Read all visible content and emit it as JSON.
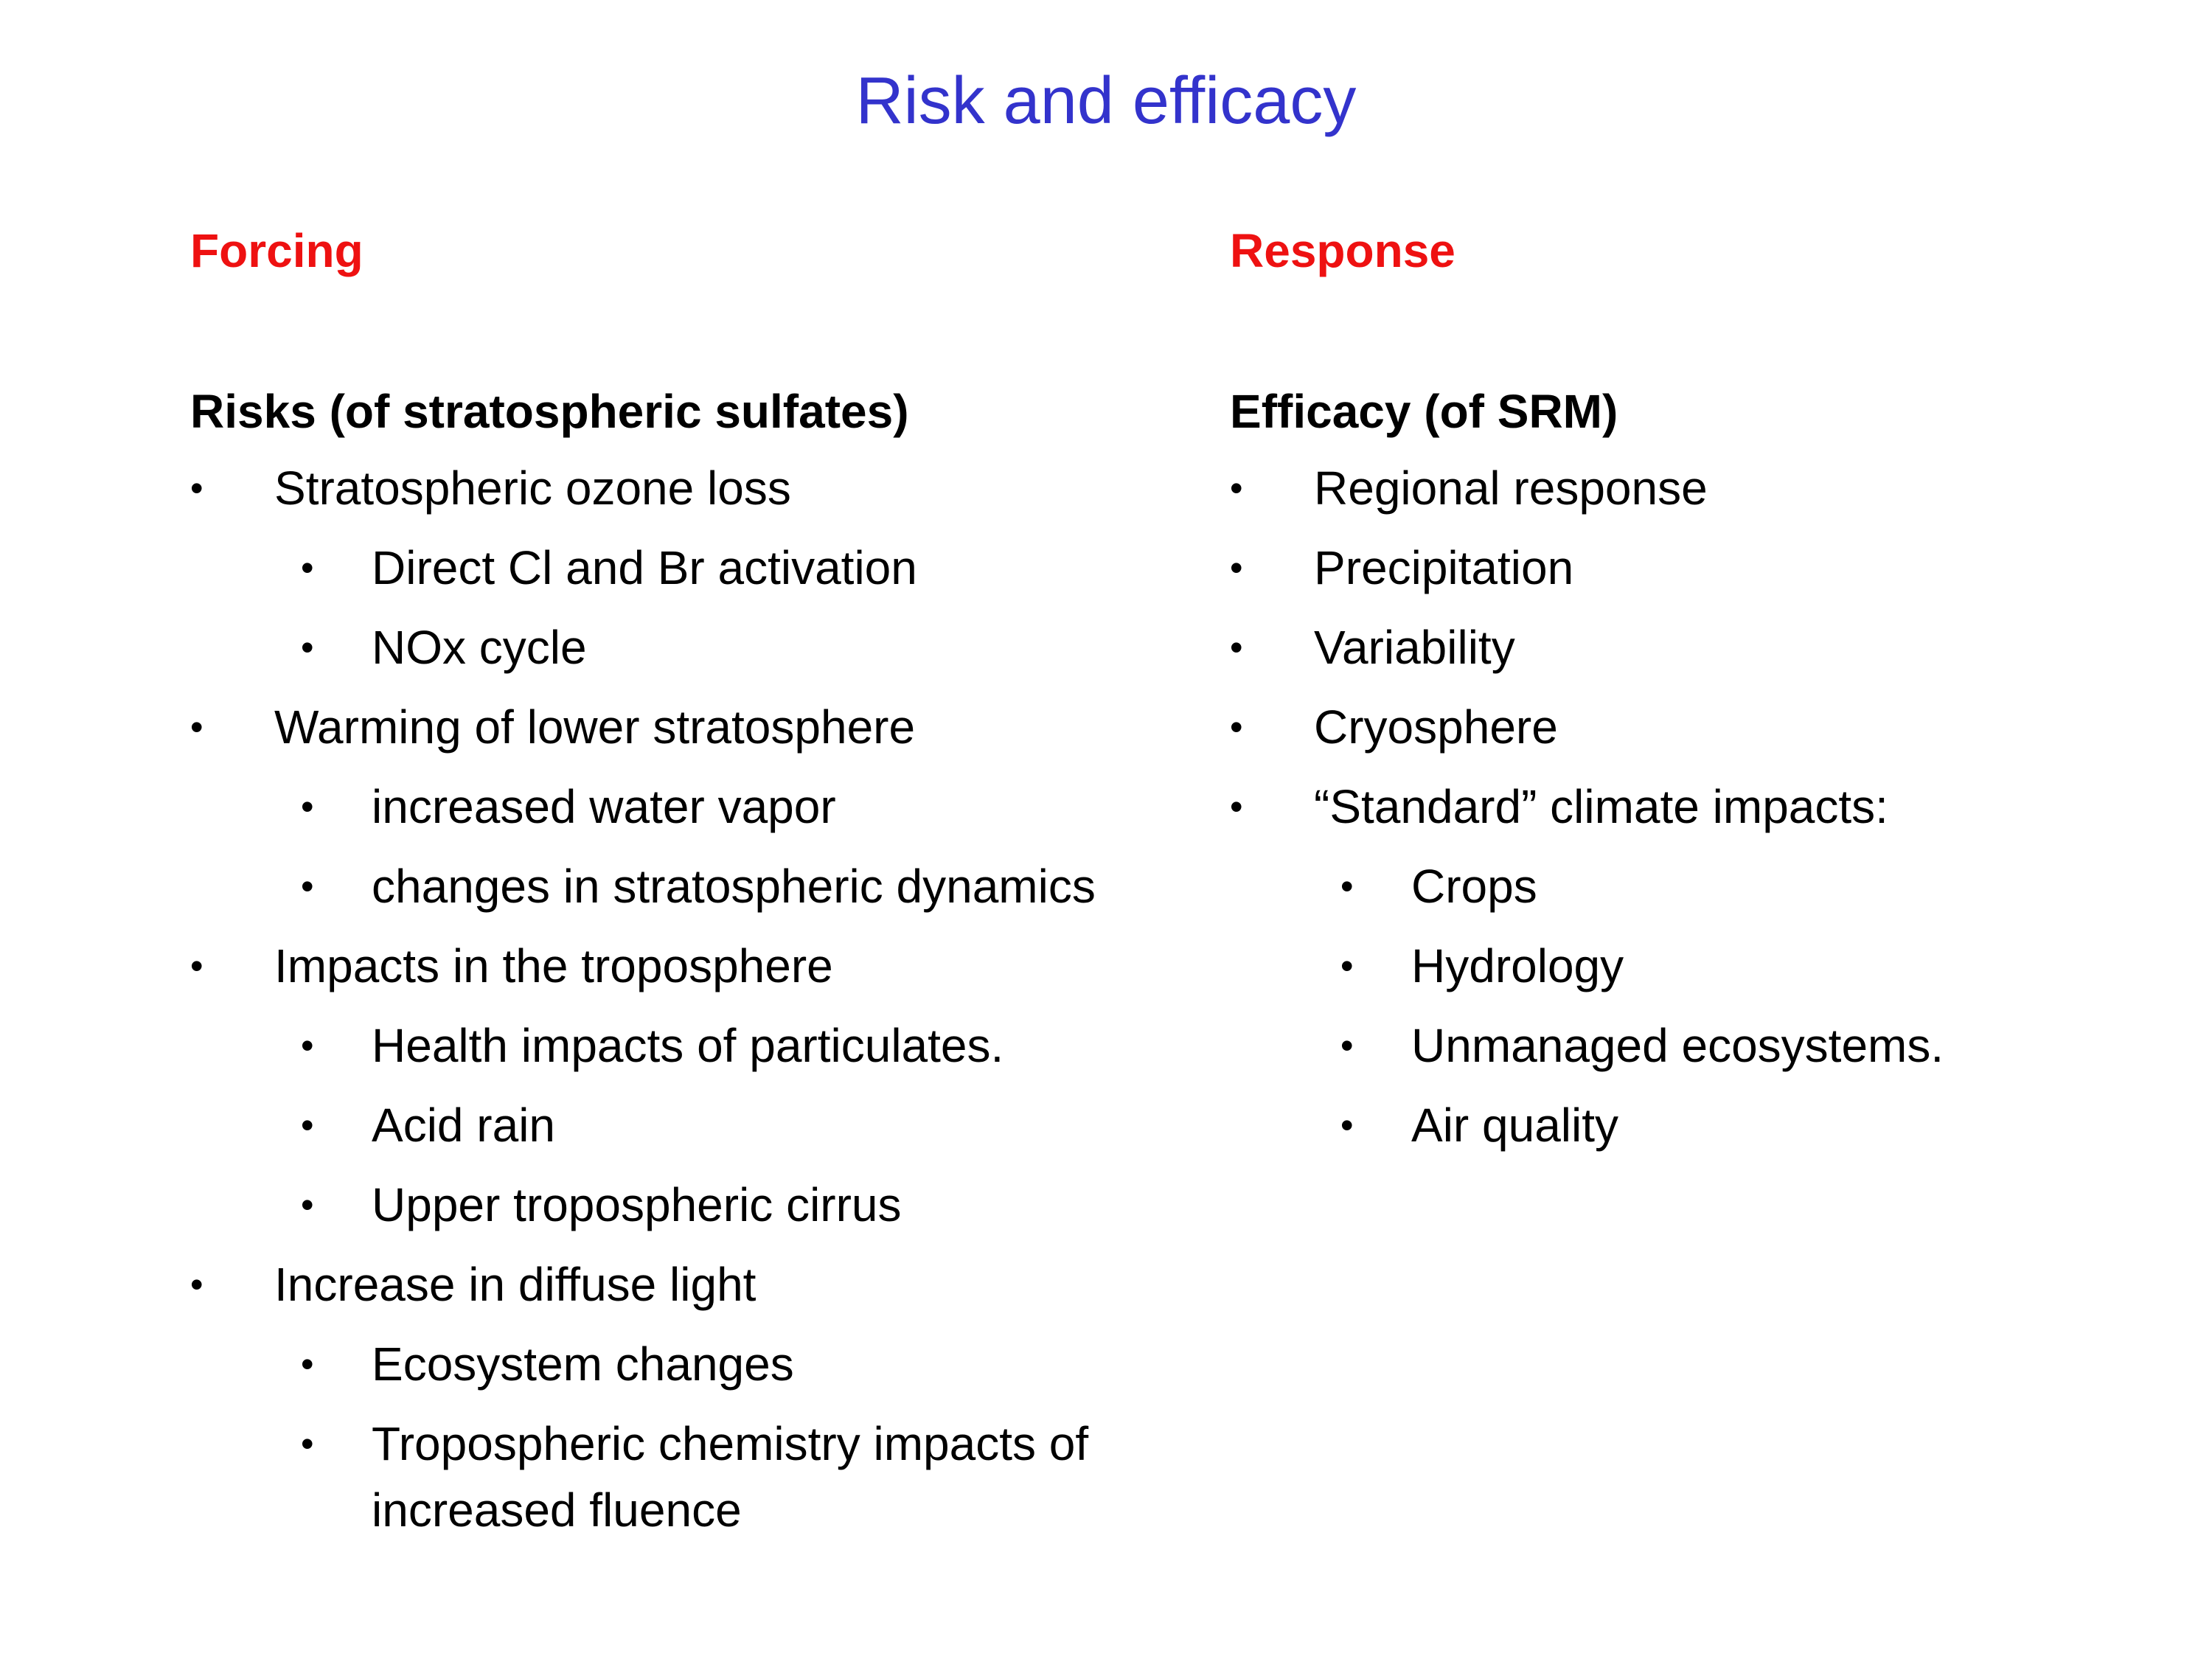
{
  "title": "Risk and efficacy",
  "bullet_char": "•",
  "colors": {
    "title": "#3333cc",
    "column_heading": "#ee1111",
    "text": "#000000"
  },
  "left": {
    "heading": "Forcing",
    "subheading": "Risks (of stratospheric sulfates)",
    "items": [
      {
        "level": 1,
        "text": "Stratospheric ozone loss"
      },
      {
        "level": 2,
        "text": "Direct Cl and Br activation"
      },
      {
        "level": 2,
        "text": "NOx cycle"
      },
      {
        "level": 1,
        "text": "Warming of lower stratosphere"
      },
      {
        "level": 2,
        "text": "increased water vapor"
      },
      {
        "level": 2,
        "text": "changes in stratospheric dynamics"
      },
      {
        "level": 1,
        "text": "Impacts in the troposphere"
      },
      {
        "level": 2,
        "text": "Health impacts of particulates."
      },
      {
        "level": 2,
        "text": "Acid rain"
      },
      {
        "level": 2,
        "text": "Upper tropospheric cirrus"
      },
      {
        "level": 1,
        "text": "Increase in diffuse light"
      },
      {
        "level": 2,
        "text": "Ecosystem changes"
      },
      {
        "level": 2,
        "text": "Tropospheric chemistry impacts of increased fluence"
      }
    ]
  },
  "right": {
    "heading": "Response",
    "subheading": "Efficacy (of SRM)",
    "items": [
      {
        "level": 1,
        "text": "Regional response"
      },
      {
        "level": 1,
        "text": "Precipitation"
      },
      {
        "level": 1,
        "text": "Variability"
      },
      {
        "level": 1,
        "text": "Cryosphere"
      },
      {
        "level": 1,
        "text": "“Standard” climate impacts:"
      },
      {
        "level": 2,
        "text": "Crops"
      },
      {
        "level": 2,
        "text": "Hydrology"
      },
      {
        "level": 2,
        "text": "Unmanaged ecosystems."
      },
      {
        "level": 2,
        "text": "Air quality"
      }
    ]
  }
}
